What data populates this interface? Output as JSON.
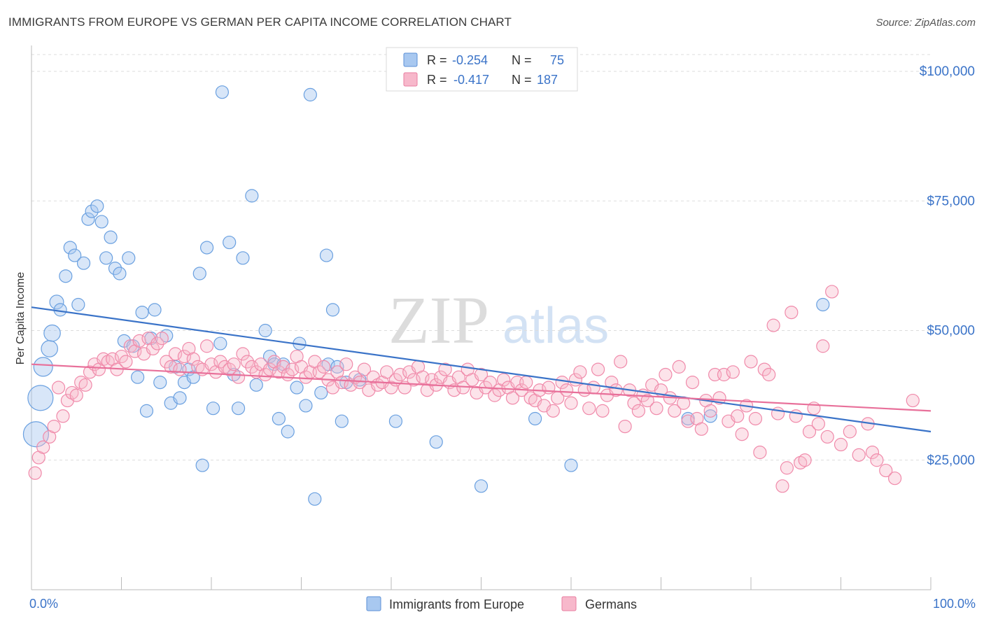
{
  "title": "IMMIGRANTS FROM EUROPE VS GERMAN PER CAPITA INCOME CORRELATION CHART",
  "source": "Source: ZipAtlas.com",
  "watermark": {
    "part1": "ZIP",
    "part2": "atlas"
  },
  "legend_top": {
    "rows": [
      {
        "r_label": "R =",
        "r_value": "-0.254",
        "n_label": "N =",
        "n_value": "75",
        "color": "#a8c8f0",
        "stroke": "#5b8fd6"
      },
      {
        "r_label": "R =",
        "r_value": "-0.417",
        "n_label": "N =",
        "n_value": "187",
        "color": "#f7b8cb",
        "stroke": "#e87ea0"
      }
    ]
  },
  "legend_bottom": [
    {
      "label": "Immigrants from Europe",
      "color": "#a8c8f0",
      "stroke": "#5b8fd6"
    },
    {
      "label": "Germans",
      "color": "#f7b8cb",
      "stroke": "#e87ea0"
    }
  ],
  "chart_data": {
    "type": "scatter",
    "title": "IMMIGRANTS FROM EUROPE VS GERMAN PER CAPITA INCOME CORRELATION CHART",
    "xlabel": "",
    "ylabel": "Per Capita Income",
    "xlim": [
      0,
      100
    ],
    "ylim": [
      0,
      105000
    ],
    "x_tick_labels": [
      "0.0%",
      "100.0%"
    ],
    "y_ticks": [
      25000,
      50000,
      75000,
      100000
    ],
    "y_tick_labels": [
      "$25,000",
      "$50,000",
      "$75,000",
      "$100,000"
    ],
    "grid": "horizontal dashed",
    "legend_placement": "top-center and bottom-center",
    "series": [
      {
        "name": "Immigrants from Europe",
        "color": "#6aa0e0",
        "trend": {
          "x": [
            0,
            100
          ],
          "y": [
            54500,
            30500
          ]
        },
        "points": [
          [
            0.5,
            30000,
            2
          ],
          [
            1.0,
            37000,
            2
          ],
          [
            1.3,
            43000,
            1.5
          ],
          [
            2.0,
            46500,
            1.3
          ],
          [
            2.3,
            49500,
            1.3
          ],
          [
            2.8,
            55500,
            1.1
          ],
          [
            3.2,
            54000,
            1
          ],
          [
            3.8,
            60500,
            1
          ],
          [
            4.3,
            66000,
            1
          ],
          [
            4.8,
            64500,
            1
          ],
          [
            5.2,
            55000,
            1
          ],
          [
            5.8,
            63000,
            1
          ],
          [
            6.3,
            71500,
            1
          ],
          [
            6.7,
            73000,
            1
          ],
          [
            7.3,
            74000,
            1
          ],
          [
            7.8,
            71000,
            1
          ],
          [
            8.3,
            64000,
            1
          ],
          [
            8.8,
            68000,
            1
          ],
          [
            9.3,
            62000,
            1
          ],
          [
            9.8,
            61000,
            1
          ],
          [
            10.3,
            48000,
            1
          ],
          [
            10.8,
            64000,
            1
          ],
          [
            11.3,
            47000,
            1
          ],
          [
            11.8,
            41000,
            1
          ],
          [
            12.3,
            53500,
            1
          ],
          [
            12.8,
            34500,
            1
          ],
          [
            13.3,
            48500,
            1
          ],
          [
            13.7,
            54000,
            1
          ],
          [
            14.3,
            40000,
            1
          ],
          [
            15.0,
            49000,
            1
          ],
          [
            15.5,
            36000,
            1
          ],
          [
            16.0,
            43000,
            1
          ],
          [
            16.5,
            37000,
            1
          ],
          [
            17.0,
            40000,
            1
          ],
          [
            17.5,
            42500,
            1
          ],
          [
            18.0,
            41000,
            1
          ],
          [
            18.7,
            61000,
            1
          ],
          [
            19.0,
            24000,
            1
          ],
          [
            19.5,
            66000,
            1
          ],
          [
            20.2,
            35000,
            1
          ],
          [
            21.0,
            47500,
            1
          ],
          [
            21.2,
            96000,
            1
          ],
          [
            22.0,
            67000,
            1
          ],
          [
            22.5,
            41500,
            1
          ],
          [
            23.0,
            35000,
            1
          ],
          [
            23.5,
            64000,
            1
          ],
          [
            24.5,
            76000,
            1
          ],
          [
            25.0,
            39500,
            1
          ],
          [
            26.0,
            50000,
            1
          ],
          [
            26.5,
            45000,
            1
          ],
          [
            27.0,
            43500,
            1
          ],
          [
            27.5,
            33000,
            1
          ],
          [
            28.0,
            43500,
            1
          ],
          [
            28.5,
            30500,
            1
          ],
          [
            29.5,
            39000,
            1
          ],
          [
            29.8,
            47500,
            1
          ],
          [
            30.5,
            35500,
            1
          ],
          [
            31.0,
            95500,
            1
          ],
          [
            31.5,
            17500,
            1
          ],
          [
            32.2,
            38000,
            1
          ],
          [
            32.8,
            64500,
            1
          ],
          [
            33.0,
            43500,
            1
          ],
          [
            33.5,
            54000,
            1
          ],
          [
            34.0,
            43000,
            1
          ],
          [
            34.5,
            32500,
            1
          ],
          [
            35.0,
            40000,
            1
          ],
          [
            36.5,
            40500,
            1
          ],
          [
            40.5,
            32500,
            1
          ],
          [
            45.0,
            28500,
            1
          ],
          [
            50.0,
            20000,
            1
          ],
          [
            56.0,
            33000,
            1
          ],
          [
            60.0,
            24000,
            1
          ],
          [
            73.0,
            33000,
            1
          ],
          [
            75.5,
            33500,
            1
          ],
          [
            88.0,
            55000,
            1
          ]
        ]
      },
      {
        "name": "Germans",
        "color": "#f08aaa",
        "trend": {
          "x": [
            0,
            100
          ],
          "y": [
            43500,
            34500
          ]
        },
        "points": [
          [
            0.4,
            22500
          ],
          [
            0.8,
            25500
          ],
          [
            1.3,
            27500
          ],
          [
            2.0,
            29500
          ],
          [
            2.5,
            31500
          ],
          [
            3.0,
            39000
          ],
          [
            3.5,
            33500
          ],
          [
            4.0,
            36500
          ],
          [
            4.5,
            38000
          ],
          [
            5.0,
            37500
          ],
          [
            5.5,
            40000
          ],
          [
            6.0,
            39500
          ],
          [
            6.5,
            42000
          ],
          [
            7.0,
            43500
          ],
          [
            7.5,
            42500
          ],
          [
            8.0,
            44500
          ],
          [
            8.5,
            44000
          ],
          [
            9.0,
            44500
          ],
          [
            9.5,
            42500
          ],
          [
            10.0,
            45000
          ],
          [
            10.5,
            44000
          ],
          [
            11.0,
            47000
          ],
          [
            11.5,
            46000
          ],
          [
            12.0,
            48000
          ],
          [
            12.5,
            45500
          ],
          [
            13.0,
            48500
          ],
          [
            13.5,
            46500
          ],
          [
            14.0,
            47500
          ],
          [
            14.5,
            48500
          ],
          [
            15.0,
            44000
          ],
          [
            15.5,
            43000
          ],
          [
            16.0,
            45500
          ],
          [
            16.5,
            42500
          ],
          [
            17.0,
            45000
          ],
          [
            17.5,
            46500
          ],
          [
            18.0,
            44500
          ],
          [
            18.5,
            43000
          ],
          [
            19.0,
            42500
          ],
          [
            19.5,
            47000
          ],
          [
            20.0,
            43500
          ],
          [
            20.5,
            42000
          ],
          [
            21.0,
            44000
          ],
          [
            21.5,
            43000
          ],
          [
            22.0,
            42500
          ],
          [
            22.5,
            43500
          ],
          [
            23.0,
            41000
          ],
          [
            23.5,
            45500
          ],
          [
            24.0,
            44000
          ],
          [
            24.5,
            43000
          ],
          [
            25.0,
            42000
          ],
          [
            25.5,
            43500
          ],
          [
            26.0,
            41500
          ],
          [
            26.5,
            42500
          ],
          [
            27.0,
            44000
          ],
          [
            27.5,
            42000
          ],
          [
            28.0,
            43000
          ],
          [
            28.5,
            41500
          ],
          [
            29.0,
            42500
          ],
          [
            29.5,
            45000
          ],
          [
            30.0,
            43000
          ],
          [
            30.5,
            41000
          ],
          [
            31.0,
            42000
          ],
          [
            31.5,
            44000
          ],
          [
            32.0,
            42000
          ],
          [
            32.5,
            43000
          ],
          [
            33.0,
            40500
          ],
          [
            33.5,
            39000
          ],
          [
            34.0,
            42000
          ],
          [
            34.5,
            40000
          ],
          [
            35.0,
            43500
          ],
          [
            35.5,
            39500
          ],
          [
            36.0,
            41000
          ],
          [
            36.5,
            40000
          ],
          [
            37.0,
            42500
          ],
          [
            37.5,
            38500
          ],
          [
            38.0,
            41000
          ],
          [
            38.5,
            39500
          ],
          [
            39.0,
            40000
          ],
          [
            39.5,
            42000
          ],
          [
            40.0,
            39000
          ],
          [
            40.5,
            40500
          ],
          [
            41.0,
            41500
          ],
          [
            41.5,
            39000
          ],
          [
            42.0,
            42000
          ],
          [
            42.5,
            40500
          ],
          [
            43.0,
            43000
          ],
          [
            43.5,
            41000
          ],
          [
            44.0,
            38500
          ],
          [
            44.5,
            40500
          ],
          [
            45.0,
            39500
          ],
          [
            45.5,
            41000
          ],
          [
            46.0,
            42500
          ],
          [
            46.5,
            40000
          ],
          [
            47.0,
            38500
          ],
          [
            47.5,
            41000
          ],
          [
            48.0,
            39000
          ],
          [
            48.5,
            42500
          ],
          [
            49.0,
            40500
          ],
          [
            49.5,
            38000
          ],
          [
            50.0,
            41500
          ],
          [
            50.5,
            39000
          ],
          [
            51.0,
            40000
          ],
          [
            51.5,
            37500
          ],
          [
            52.0,
            38500
          ],
          [
            52.5,
            40500
          ],
          [
            53.0,
            39000
          ],
          [
            53.5,
            37000
          ],
          [
            54.0,
            40000
          ],
          [
            54.5,
            38500
          ],
          [
            55.0,
            40000
          ],
          [
            55.5,
            37000
          ],
          [
            56.0,
            36500
          ],
          [
            56.5,
            38500
          ],
          [
            57.0,
            35500
          ],
          [
            57.5,
            39000
          ],
          [
            58.0,
            34500
          ],
          [
            58.5,
            37000
          ],
          [
            59.0,
            40000
          ],
          [
            59.5,
            38500
          ],
          [
            60.0,
            36000
          ],
          [
            60.5,
            40500
          ],
          [
            61.0,
            42000
          ],
          [
            61.5,
            38500
          ],
          [
            62.0,
            35000
          ],
          [
            62.5,
            39000
          ],
          [
            63.0,
            42500
          ],
          [
            63.5,
            34500
          ],
          [
            64.0,
            37500
          ],
          [
            64.5,
            40000
          ],
          [
            65.0,
            38500
          ],
          [
            65.5,
            44000
          ],
          [
            66.0,
            31500
          ],
          [
            66.5,
            38500
          ],
          [
            67.0,
            36000
          ],
          [
            67.5,
            34500
          ],
          [
            68.0,
            37500
          ],
          [
            68.5,
            36500
          ],
          [
            69.0,
            39500
          ],
          [
            69.5,
            35000
          ],
          [
            70.0,
            38500
          ],
          [
            70.5,
            41500
          ],
          [
            71.0,
            37000
          ],
          [
            71.5,
            34500
          ],
          [
            72.0,
            43000
          ],
          [
            72.5,
            36000
          ],
          [
            73.0,
            32500
          ],
          [
            73.5,
            40000
          ],
          [
            74.0,
            33000
          ],
          [
            74.5,
            31000
          ],
          [
            75.0,
            36500
          ],
          [
            75.5,
            34500
          ],
          [
            76.0,
            41500
          ],
          [
            76.5,
            37000
          ],
          [
            77.0,
            41500
          ],
          [
            77.5,
            32500
          ],
          [
            78.0,
            42000
          ],
          [
            78.5,
            33500
          ],
          [
            79.0,
            30000
          ],
          [
            79.5,
            35500
          ],
          [
            80.0,
            44000
          ],
          [
            80.5,
            33000
          ],
          [
            81.0,
            26500
          ],
          [
            81.5,
            42500
          ],
          [
            82.0,
            41500
          ],
          [
            82.5,
            51000
          ],
          [
            83.0,
            34000
          ],
          [
            83.5,
            20000
          ],
          [
            84.0,
            23500
          ],
          [
            84.5,
            53500
          ],
          [
            85.0,
            33500
          ],
          [
            85.5,
            24500
          ],
          [
            86.0,
            25000
          ],
          [
            86.5,
            30500
          ],
          [
            87.0,
            35000
          ],
          [
            87.5,
            32000
          ],
          [
            88.0,
            47000
          ],
          [
            88.5,
            29500
          ],
          [
            89.0,
            57500
          ],
          [
            90.0,
            28000
          ],
          [
            91.0,
            30500
          ],
          [
            92.0,
            26000
          ],
          [
            93.0,
            32000
          ],
          [
            93.5,
            26500
          ],
          [
            94.0,
            25000
          ],
          [
            95.0,
            23000
          ],
          [
            96.0,
            21500
          ],
          [
            98.0,
            36500
          ]
        ]
      }
    ]
  }
}
